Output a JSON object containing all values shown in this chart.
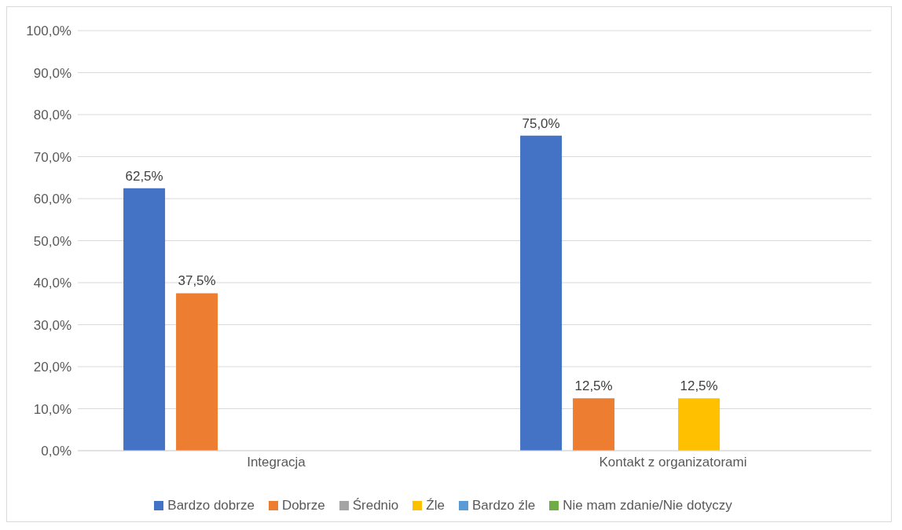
{
  "chart_data": {
    "type": "bar",
    "categories": [
      "Integracja",
      "Kontakt z organizatorami"
    ],
    "series": [
      {
        "name": "Bardzo dobrze",
        "color": "#4472c4",
        "values": [
          62.5,
          75.0
        ],
        "value_labels": [
          "62,5%",
          "75,0%"
        ]
      },
      {
        "name": "Dobrze",
        "color": "#ed7d31",
        "values": [
          37.5,
          12.5
        ],
        "value_labels": [
          "37,5%",
          "12,5%"
        ]
      },
      {
        "name": "Średnio",
        "color": "#a5a5a5",
        "values": [
          0,
          0
        ],
        "value_labels": [
          null,
          null
        ]
      },
      {
        "name": "Źle",
        "color": "#ffc000",
        "values": [
          0,
          12.5
        ],
        "value_labels": [
          null,
          "12,5%"
        ]
      },
      {
        "name": "Bardzo źle",
        "color": "#5b9bd5",
        "values": [
          0,
          0
        ],
        "value_labels": [
          null,
          null
        ]
      },
      {
        "name": "Nie mam zdanie/Nie dotyczy",
        "color": "#70ad47",
        "values": [
          0,
          0
        ],
        "value_labels": [
          null,
          null
        ]
      }
    ],
    "ylim": [
      0,
      100
    ],
    "yticks": [
      {
        "value": 0,
        "label": "0,0%"
      },
      {
        "value": 10,
        "label": "10,0%"
      },
      {
        "value": 20,
        "label": "20,0%"
      },
      {
        "value": 30,
        "label": "30,0%"
      },
      {
        "value": 40,
        "label": "40,0%"
      },
      {
        "value": 50,
        "label": "50,0%"
      },
      {
        "value": 60,
        "label": "60,0%"
      },
      {
        "value": 70,
        "label": "70,0%"
      },
      {
        "value": 80,
        "label": "80,0%"
      },
      {
        "value": 90,
        "label": "90,0%"
      },
      {
        "value": 100,
        "label": "100,0%"
      }
    ],
    "grid": "y",
    "legend": "bottom"
  }
}
